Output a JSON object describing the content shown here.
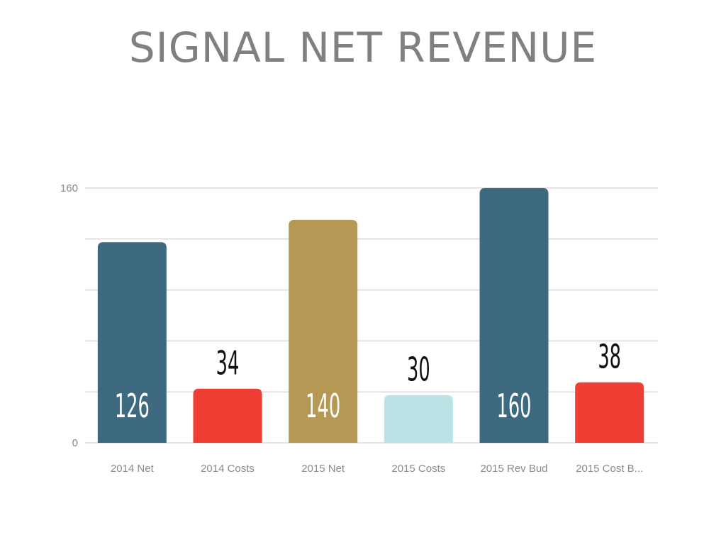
{
  "chart_data": {
    "type": "bar",
    "title": "SIGNAL NET REVENUE",
    "categories": [
      "2014 Net",
      "2014 Costs",
      "2015 Net",
      "2015 Costs",
      "2015 Rev Bud",
      "2015 Cost B..."
    ],
    "values": [
      126,
      34,
      140,
      30,
      160,
      38
    ],
    "colors": [
      "#3d6a7f",
      "#f03e35",
      "#b69855",
      "#bbe3e5",
      "#3d6a7f",
      "#f03e35"
    ],
    "ylim": [
      0,
      160
    ],
    "y_ticks_labeled": [
      0,
      160
    ],
    "gridline_count": 5,
    "xlabel": "",
    "ylabel": "",
    "grid": true,
    "legend": "none",
    "value_label_color_inside": "#ffffff",
    "value_label_color_outside": "#111111"
  }
}
